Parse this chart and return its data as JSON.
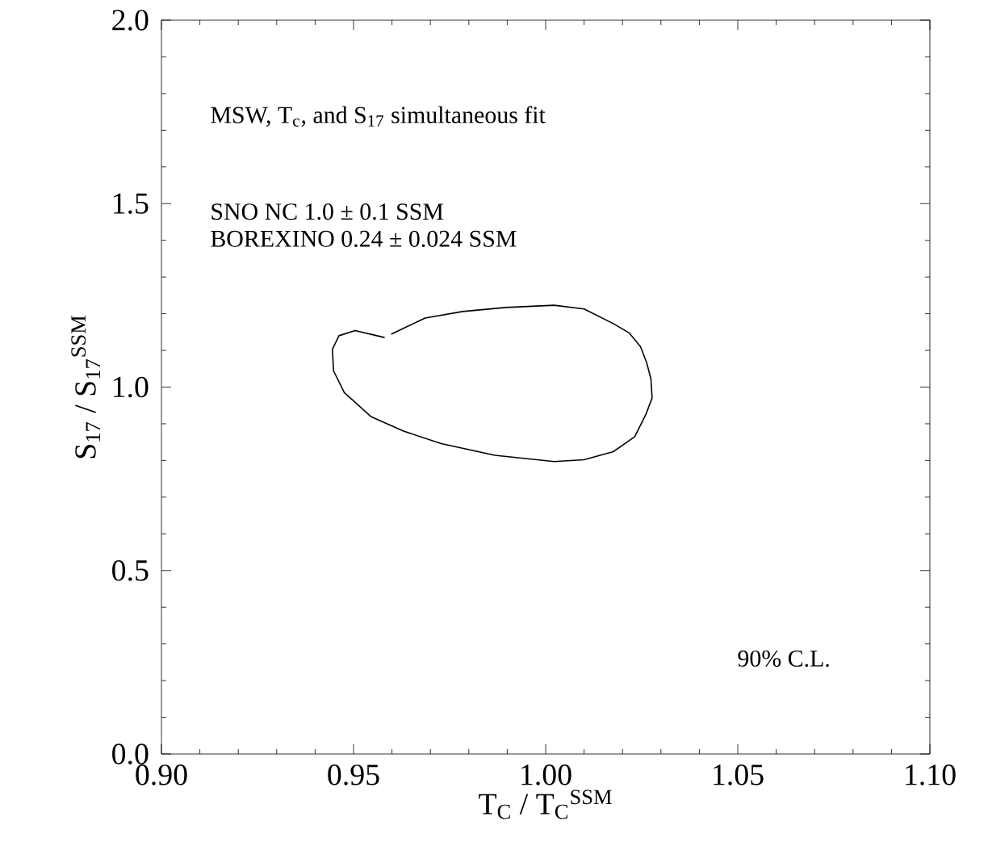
{
  "chart_data": {
    "type": "line",
    "xlabel": "T$_{C}$ / T$_{C}$$^{SSM}$",
    "ylabel": "S$_{17}$ / S$_{17}$$^{SSM}$",
    "annotations": [
      "MSW, T$_{c}$, and S$_{17}$ simultaneous fit",
      "SNO NC 1.0 ± 0.1 SSM",
      "BOREXINO 0.24 ± 0.024 SSM",
      "90% C.L."
    ],
    "xlim": [
      0.9,
      1.1
    ],
    "ylim": [
      0,
      2
    ],
    "xticks": [
      {
        "value": 0.9,
        "label": "0.90"
      },
      {
        "value": 0.95,
        "label": "0.95"
      },
      {
        "value": 1.0,
        "label": "1.00"
      },
      {
        "value": 1.05,
        "label": "1.05"
      },
      {
        "value": 1.1,
        "label": "1.10"
      }
    ],
    "yticks": [
      {
        "value": 0,
        "label": "0.0"
      },
      {
        "value": 0.5,
        "label": "0.5"
      },
      {
        "value": 1.0,
        "label": "1.0"
      },
      {
        "value": 1.5,
        "label": "1.5"
      },
      {
        "value": 2.0,
        "label": "2.0"
      }
    ],
    "grid": false,
    "marker": "none",
    "line_style": "solid",
    "x": [
      0.9581,
      0.9504,
      0.9462,
      0.9445,
      0.9448,
      0.9476,
      0.9546,
      0.963,
      0.9728,
      0.9868,
      1.0022,
      1.01,
      1.0176,
      1.0232,
      1.0261,
      1.0277,
      1.0274,
      1.0263,
      1.0247,
      1.0218,
      1.0176,
      1.01,
      1.0022,
      0.9896,
      0.9784,
      0.9686,
      0.9598
    ],
    "series": [
      {
        "color": "#000000",
        "values": [
          1.135,
          1.154,
          1.14,
          1.103,
          1.044,
          0.985,
          0.919,
          0.88,
          0.846,
          0.814,
          0.797,
          0.802,
          0.824,
          0.865,
          0.926,
          0.97,
          1.022,
          1.066,
          1.11,
          1.147,
          1.173,
          1.213,
          1.223,
          1.217,
          1.206,
          1.188,
          1.144
        ]
      }
    ]
  }
}
